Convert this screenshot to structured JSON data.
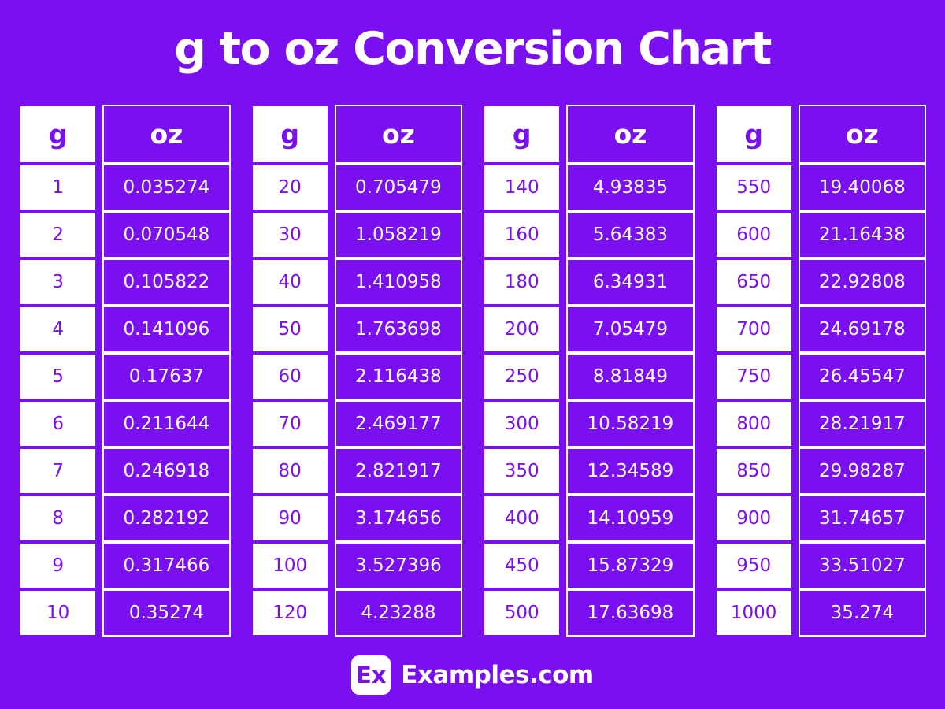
{
  "page": {
    "title": "g to oz Conversion Chart",
    "background_color": "#7A10F0",
    "text_white": "#FFFFFF"
  },
  "table_headers": {
    "g": "g",
    "oz": "oz"
  },
  "tables": [
    {
      "rows": [
        {
          "g": "1",
          "oz": "0.035274"
        },
        {
          "g": "2",
          "oz": "0.070548"
        },
        {
          "g": "3",
          "oz": "0.105822"
        },
        {
          "g": "4",
          "oz": "0.141096"
        },
        {
          "g": "5",
          "oz": "0.17637"
        },
        {
          "g": "6",
          "oz": "0.211644"
        },
        {
          "g": "7",
          "oz": "0.246918"
        },
        {
          "g": "8",
          "oz": "0.282192"
        },
        {
          "g": "9",
          "oz": "0.317466"
        },
        {
          "g": "10",
          "oz": "0.35274"
        }
      ]
    },
    {
      "rows": [
        {
          "g": "20",
          "oz": "0.705479"
        },
        {
          "g": "30",
          "oz": "1.058219"
        },
        {
          "g": "40",
          "oz": "1.410958"
        },
        {
          "g": "50",
          "oz": "1.763698"
        },
        {
          "g": "60",
          "oz": "2.116438"
        },
        {
          "g": "70",
          "oz": "2.469177"
        },
        {
          "g": "80",
          "oz": "2.821917"
        },
        {
          "g": "90",
          "oz": "3.174656"
        },
        {
          "g": "100",
          "oz": "3.527396"
        },
        {
          "g": "120",
          "oz": "4.23288"
        }
      ]
    },
    {
      "rows": [
        {
          "g": "140",
          "oz": "4.93835"
        },
        {
          "g": "160",
          "oz": "5.64383"
        },
        {
          "g": "180",
          "oz": "6.34931"
        },
        {
          "g": "200",
          "oz": "7.05479"
        },
        {
          "g": "250",
          "oz": "8.81849"
        },
        {
          "g": "300",
          "oz": "10.58219"
        },
        {
          "g": "350",
          "oz": "12.34589"
        },
        {
          "g": "400",
          "oz": "14.10959"
        },
        {
          "g": "450",
          "oz": "15.87329"
        },
        {
          "g": "500",
          "oz": "17.63698"
        }
      ]
    },
    {
      "rows": [
        {
          "g": "550",
          "oz": "19.40068"
        },
        {
          "g": "600",
          "oz": "21.16438"
        },
        {
          "g": "650",
          "oz": "22.92808"
        },
        {
          "g": "700",
          "oz": "24.69178"
        },
        {
          "g": "750",
          "oz": "26.45547"
        },
        {
          "g": "800",
          "oz": "28.21917"
        },
        {
          "g": "850",
          "oz": "29.98287"
        },
        {
          "g": "900",
          "oz": "31.74657"
        },
        {
          "g": "950",
          "oz": "33.51027"
        },
        {
          "g": "1000",
          "oz": "35.274"
        }
      ]
    }
  ],
  "footer": {
    "logo_text": "Ex",
    "brand": "Examples.com"
  },
  "chart_data": {
    "type": "table",
    "title": "g to oz Conversion Chart",
    "columns": [
      "g",
      "oz"
    ],
    "rows": [
      [
        1,
        0.035274
      ],
      [
        2,
        0.070548
      ],
      [
        3,
        0.105822
      ],
      [
        4,
        0.141096
      ],
      [
        5,
        0.17637
      ],
      [
        6,
        0.211644
      ],
      [
        7,
        0.246918
      ],
      [
        8,
        0.282192
      ],
      [
        9,
        0.317466
      ],
      [
        10,
        0.35274
      ],
      [
        20,
        0.705479
      ],
      [
        30,
        1.058219
      ],
      [
        40,
        1.410958
      ],
      [
        50,
        1.763698
      ],
      [
        60,
        2.116438
      ],
      [
        70,
        2.469177
      ],
      [
        80,
        2.821917
      ],
      [
        90,
        3.174656
      ],
      [
        100,
        3.527396
      ],
      [
        120,
        4.23288
      ],
      [
        140,
        4.93835
      ],
      [
        160,
        5.64383
      ],
      [
        180,
        6.34931
      ],
      [
        200,
        7.05479
      ],
      [
        250,
        8.81849
      ],
      [
        300,
        10.58219
      ],
      [
        350,
        12.34589
      ],
      [
        400,
        14.10959
      ],
      [
        450,
        15.87329
      ],
      [
        500,
        17.63698
      ],
      [
        550,
        19.40068
      ],
      [
        600,
        21.16438
      ],
      [
        650,
        22.92808
      ],
      [
        700,
        24.69178
      ],
      [
        750,
        26.45547
      ],
      [
        800,
        28.21917
      ],
      [
        850,
        29.98287
      ],
      [
        900,
        31.74657
      ],
      [
        950,
        33.51027
      ],
      [
        1000,
        35.274
      ]
    ],
    "layout": "4 side-by-side two-column tables, header row per table"
  }
}
